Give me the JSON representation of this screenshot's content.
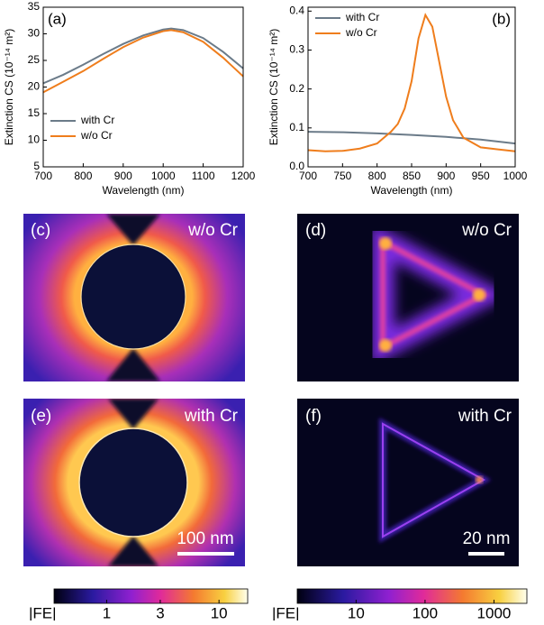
{
  "chart_data": [
    {
      "type": "line",
      "panel": "(a)",
      "xlabel": "Wavelength (nm)",
      "ylabel": "Extinction CS (10⁻¹⁴ m²)",
      "x": [
        700,
        750,
        800,
        850,
        900,
        950,
        1000,
        1020,
        1050,
        1100,
        1150,
        1200
      ],
      "series": [
        {
          "name": "with Cr",
          "color": "#6b7b89",
          "values": [
            20.7,
            22.3,
            24.2,
            26.2,
            28.1,
            29.7,
            30.8,
            31.0,
            30.7,
            29.2,
            26.6,
            23.5
          ]
        },
        {
          "name": "w/o Cr",
          "color": "#ef7d1c",
          "values": [
            19.0,
            21.0,
            23.0,
            25.3,
            27.5,
            29.3,
            30.5,
            30.7,
            30.3,
            28.5,
            25.5,
            22.0
          ]
        }
      ],
      "xlim": [
        700,
        1200
      ],
      "xticks": [
        700,
        800,
        900,
        1000,
        1100,
        1200
      ],
      "ylim": [
        5,
        35
      ],
      "yticks": [
        5,
        10,
        15,
        20,
        25,
        30,
        35
      ],
      "legend": "lower left"
    },
    {
      "type": "line",
      "panel": "(b)",
      "xlabel": "Wavelength (nm)",
      "ylabel": "Extinction CS (10⁻¹⁴ m²)",
      "series": [
        {
          "name": "with Cr",
          "color": "#6b7b89",
          "x": [
            700,
            750,
            800,
            850,
            900,
            950,
            1000
          ],
          "values": [
            0.09,
            0.089,
            0.086,
            0.082,
            0.077,
            0.07,
            0.06
          ]
        },
        {
          "name": "w/o Cr",
          "color": "#ef7d1c",
          "x": [
            700,
            725,
            750,
            775,
            800,
            820,
            830,
            840,
            850,
            860,
            870,
            880,
            890,
            900,
            910,
            925,
            950,
            975,
            1000
          ],
          "values": [
            0.043,
            0.04,
            0.041,
            0.047,
            0.06,
            0.09,
            0.11,
            0.15,
            0.22,
            0.33,
            0.39,
            0.36,
            0.27,
            0.18,
            0.12,
            0.075,
            0.05,
            0.045,
            0.04
          ]
        }
      ],
      "xlim": [
        700,
        1000
      ],
      "xticks": [
        700,
        750,
        800,
        850,
        900,
        950,
        1000
      ],
      "ylim": [
        0,
        0.41
      ],
      "yticks": [
        {
          "value": 0,
          "label": "0.0"
        },
        0.1,
        0.2,
        0.3,
        0.4
      ],
      "legend": "upper left"
    }
  ],
  "field_maps": [
    {
      "label": "(c)",
      "caption": "w/o Cr"
    },
    {
      "label": "(d)",
      "caption": "w/o Cr"
    },
    {
      "label": "(e)",
      "caption": "with Cr",
      "scale_bar": "100 nm"
    },
    {
      "label": "(f)",
      "caption": "with Cr",
      "scale_bar": "20 nm"
    }
  ],
  "colorbars": [
    {
      "label": "|FE|",
      "lim": [
        0.34,
        18
      ],
      "ticks": [
        1,
        3,
        10
      ]
    },
    {
      "label": "|FE|",
      "lim": [
        1.4,
        3000
      ],
      "ticks": [
        10,
        100,
        1000
      ]
    }
  ]
}
